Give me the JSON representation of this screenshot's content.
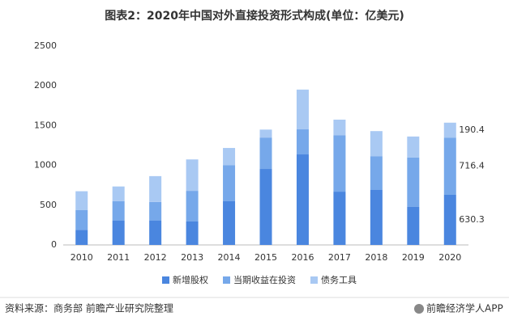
{
  "chart_data": {
    "type": "stacked_bar",
    "title": "图表2：2020年中国对外直接投资形式构成(单位：亿美元)",
    "categories": [
      "2010",
      "2011",
      "2012",
      "2013",
      "2014",
      "2015",
      "2016",
      "2017",
      "2018",
      "2019",
      "2020"
    ],
    "series": [
      {
        "name": "新增股权",
        "color": "#4a86df",
        "values": [
          190,
          305,
          305,
          295,
          549,
          955,
          1138,
          670,
          691,
          478,
          630.3
        ],
        "value_labels": [
          null,
          null,
          null,
          null,
          null,
          null,
          null,
          null,
          null,
          null,
          "630.3"
        ]
      },
      {
        "name": "当期收益在投资",
        "color": "#76a8ea",
        "values": [
          250,
          245,
          235,
          385,
          455,
          395,
          315,
          710,
          425,
          620,
          716.4
        ],
        "value_labels": [
          null,
          null,
          null,
          null,
          null,
          null,
          null,
          null,
          null,
          null,
          "716.4"
        ]
      },
      {
        "name": "债务工具",
        "color": "#a9c9f3",
        "values": [
          235,
          185,
          325,
          395,
          215,
          100,
          500,
          195,
          315,
          265,
          190.4
        ],
        "value_labels": [
          null,
          null,
          null,
          null,
          null,
          null,
          null,
          null,
          null,
          null,
          "190.4"
        ]
      }
    ],
    "ylim": [
      0,
      2500
    ],
    "yticks": [
      0,
      500,
      1000,
      1500,
      2000,
      2500
    ],
    "grid": false,
    "legend": "bottom",
    "source": "资料来源：商务部 前瞻产业研究院整理",
    "brand": "前瞻经济学人APP"
  }
}
